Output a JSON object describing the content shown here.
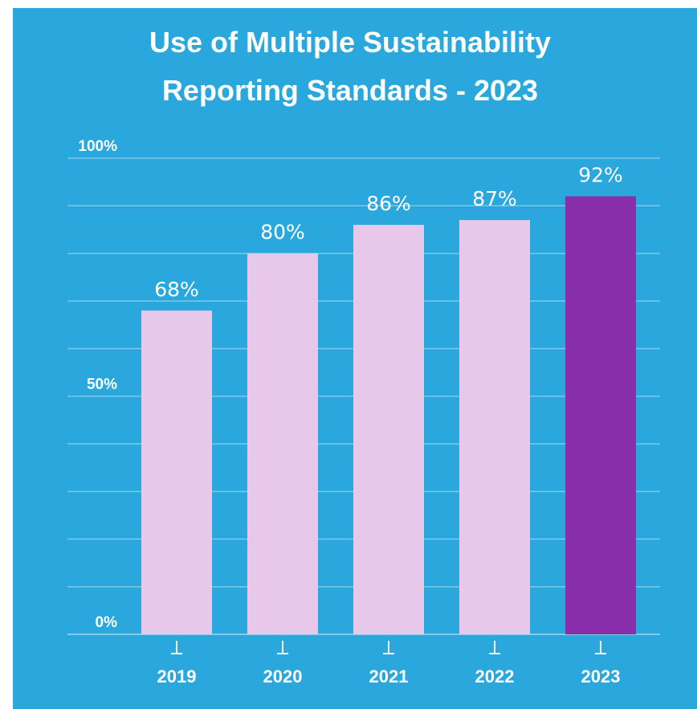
{
  "colors": {
    "background": "#2aa7dc",
    "bar_default": "#e8c8ea",
    "bar_highlight": "#8a2fab",
    "text": "#ffffff"
  },
  "chart_data": {
    "type": "bar",
    "title_lines": [
      "Use of Multiple Sustainability",
      "Reporting Standards - 2023"
    ],
    "categories": [
      "2019",
      "2020",
      "2021",
      "2022",
      "2023"
    ],
    "values": [
      68,
      80,
      86,
      87,
      92
    ],
    "data_labels": [
      "68%",
      "80%",
      "86%",
      "87%",
      "92%"
    ],
    "highlight_index": 4,
    "y_ticks": [
      {
        "value": 0,
        "label": "0%"
      },
      {
        "value": 50,
        "label": "50%"
      },
      {
        "value": 100,
        "label": "100%"
      }
    ],
    "ylim": [
      0,
      100
    ],
    "grid": true,
    "xlabel": "",
    "ylabel": ""
  }
}
